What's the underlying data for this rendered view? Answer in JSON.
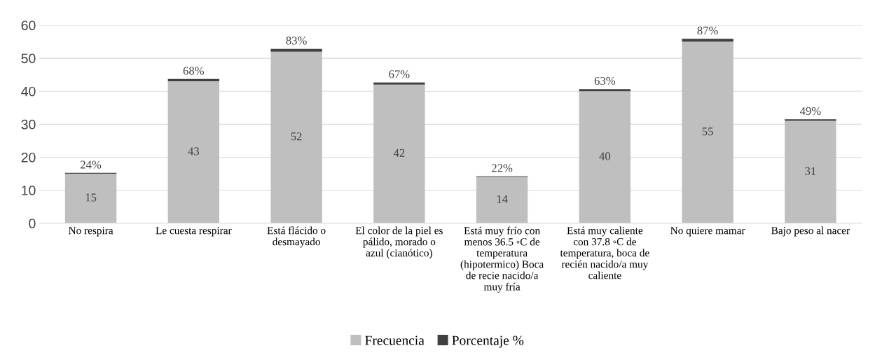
{
  "chart_data": {
    "type": "bar",
    "stacked": true,
    "categories": [
      "No respira",
      "Le cuesta respirar",
      "Está flácido o\ndesmayado",
      "El color de la piel es\npálido, morado o\nazul (cianótico)",
      "Está muy frío con\nmenos 36.5 ◦C de\ntemperatura\n(hipotermico) Boca\nde recie nacido/a\nmuy fría",
      "Está muy caliente\ncon 37.8 ◦C de\ntemperatura, boca de\nrecién nacido/a muy\ncaliente",
      "No quiere mamar",
      "Bajo peso al nacer"
    ],
    "series": [
      {
        "name": "Frecuencia",
        "color": "#bfbfbf",
        "values": [
          15,
          43,
          52,
          42,
          14,
          40,
          55,
          31
        ],
        "data_labels": true
      },
      {
        "name": "Porcentaje %",
        "color": "#404040",
        "values": [
          0.24,
          0.68,
          0.83,
          0.67,
          0.22,
          0.63,
          0.87,
          0.49
        ],
        "value_labels": [
          "24%",
          "68%",
          "83%",
          "67%",
          "22%",
          "63%",
          "87%",
          "49%"
        ]
      }
    ],
    "ylim": [
      0,
      60
    ],
    "yticks": [
      0,
      10,
      20,
      30,
      40,
      50,
      60
    ],
    "grid": "y",
    "legend": "bottom"
  }
}
